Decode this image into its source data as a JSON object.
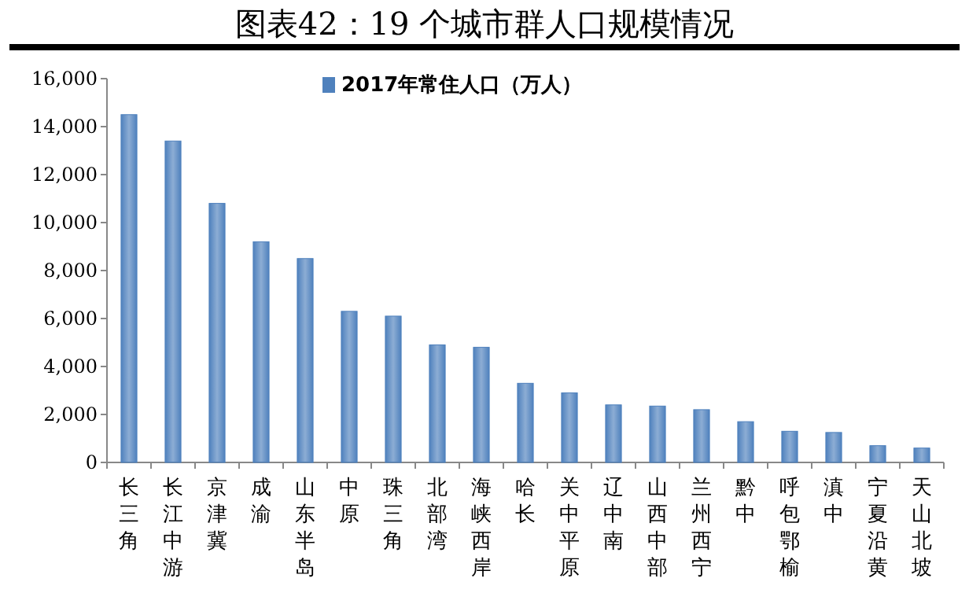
{
  "chart_data": {
    "type": "bar",
    "title": "图表42：19 个城市群人口规模情况",
    "categories": [
      "长三角",
      "长江中游",
      "京津冀",
      "成渝",
      "山东半岛",
      "中原",
      "珠三角",
      "北部湾",
      "海峡西岸",
      "哈长",
      "关中平原",
      "辽中南",
      "山西中部",
      "兰州西宁",
      "黔中",
      "呼包鄂榆",
      "滇中",
      "宁夏沿黄",
      "天山北坡"
    ],
    "series": [
      {
        "name": "2017年常住人口（万人）",
        "color": "#4f81bd",
        "values": [
          14500,
          13400,
          10800,
          9200,
          8500,
          6300,
          6100,
          4900,
          4800,
          3300,
          2900,
          2400,
          2350,
          2200,
          1700,
          1300,
          1250,
          700,
          600
        ]
      }
    ],
    "ylim": [
      0,
      16000
    ],
    "yticks": [
      {
        "value": 0,
        "label": "0"
      },
      {
        "value": 2000,
        "label": "2,000"
      },
      {
        "value": 4000,
        "label": "4,000"
      },
      {
        "value": 6000,
        "label": "6,000"
      },
      {
        "value": 8000,
        "label": "8,000"
      },
      {
        "value": 10000,
        "label": "10,000"
      },
      {
        "value": 12000,
        "label": "12,000"
      },
      {
        "value": 14000,
        "label": "14,000"
      },
      {
        "value": 16000,
        "label": "16,000"
      }
    ],
    "grid": false,
    "legend": "top left"
  }
}
